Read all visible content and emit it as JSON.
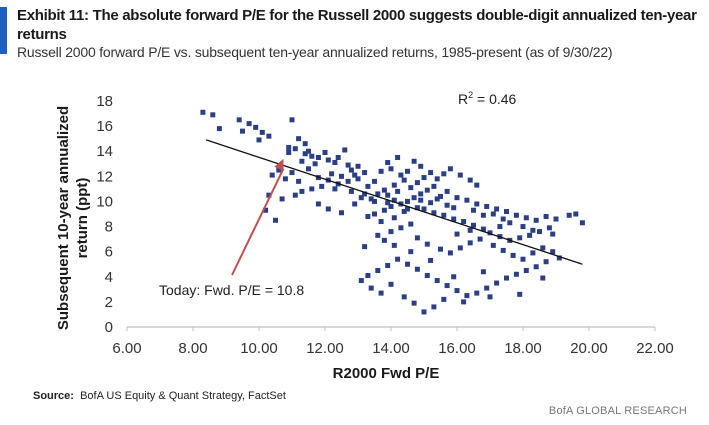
{
  "title": "Exhibit 11: The absolute forward  P/E for the Russell 2000 suggests double-digit annualized ten-year returns",
  "subtitle": "Russell 2000 forward P/E vs. subsequent ten-year annualized returns, 1985-present (as of 9/30/22)",
  "source_label": "Source:",
  "source_text": "BofA US Equity  & Quant Strategy, FactSet",
  "brand": "BofA GLOBAL RESEARCH",
  "colors": {
    "accent": "#1f5fbf",
    "marker": "#2b3f86",
    "arrow": "#c0504d",
    "trend": "#111111"
  },
  "chart_data": {
    "type": "scatter",
    "title": "Exhibit 11: The absolute forward  P/E for the Russell 2000 suggests double-digit annualized ten-year returns",
    "xlabel": "R2000 Fwd P/E",
    "ylabel": "Subsequent 10-year annualized return (ppt)",
    "xlim": [
      6,
      22
    ],
    "ylim": [
      0,
      18
    ],
    "xticks": [
      "6.00",
      "8.00",
      "10.00",
      "12.00",
      "14.00",
      "16.00",
      "18.00",
      "20.00",
      "22.00"
    ],
    "yticks": [
      "0",
      "2",
      "4",
      "6",
      "8",
      "10",
      "12",
      "14",
      "16",
      "18"
    ],
    "r2_label": "R",
    "r2_sup": "2",
    "r2_value": " = 0.46",
    "annotation": {
      "text": "Today: Fwd. P/E = 10.8",
      "x": 10.8,
      "y": 13.4
    },
    "trendline": {
      "x1": 8.4,
      "y1": 14.9,
      "x2": 19.8,
      "y2": 5.0
    },
    "points": [
      [
        8.3,
        17.1
      ],
      [
        8.6,
        16.9
      ],
      [
        8.8,
        15.8
      ],
      [
        9.4,
        16.5
      ],
      [
        9.7,
        16.2
      ],
      [
        9.9,
        15.9
      ],
      [
        9.5,
        15.6
      ],
      [
        10.1,
        15.5
      ],
      [
        10.3,
        15.2
      ],
      [
        10.0,
        14.9
      ],
      [
        11.0,
        16.5
      ],
      [
        11.2,
        15.0
      ],
      [
        11.4,
        14.6
      ],
      [
        11.1,
        14.2
      ],
      [
        11.5,
        14.0
      ],
      [
        10.9,
        13.9
      ],
      [
        11.6,
        13.6
      ],
      [
        11.3,
        13.2
      ],
      [
        11.8,
        13.5
      ],
      [
        12.1,
        13.3
      ],
      [
        12.4,
        13.5
      ],
      [
        12.6,
        14.1
      ],
      [
        12.3,
        13.1
      ],
      [
        11.7,
        13.0
      ],
      [
        11.5,
        12.6
      ],
      [
        11.0,
        12.3
      ],
      [
        10.6,
        12.5
      ],
      [
        10.4,
        12.1
      ],
      [
        10.8,
        11.8
      ],
      [
        11.2,
        11.6
      ],
      [
        11.8,
        11.9
      ],
      [
        12.2,
        12.2
      ],
      [
        12.5,
        12.0
      ],
      [
        12.8,
        12.5
      ],
      [
        12.9,
        12.1
      ],
      [
        13.2,
        12.3
      ],
      [
        13.0,
        11.8
      ],
      [
        12.7,
        11.6
      ],
      [
        12.4,
        11.4
      ],
      [
        12.1,
        11.7
      ],
      [
        11.9,
        11.2
      ],
      [
        11.6,
        11.0
      ],
      [
        11.3,
        10.8
      ],
      [
        11.1,
        10.5
      ],
      [
        10.7,
        10.2
      ],
      [
        10.3,
        10.5
      ],
      [
        10.2,
        9.3
      ],
      [
        10.5,
        8.5
      ],
      [
        11.8,
        9.8
      ],
      [
        12.1,
        9.4
      ],
      [
        12.5,
        9.1
      ],
      [
        12.9,
        9.8
      ],
      [
        13.1,
        10.3
      ],
      [
        13.3,
        11.2
      ],
      [
        13.5,
        11.6
      ],
      [
        13.7,
        12.4
      ],
      [
        13.9,
        13.1
      ],
      [
        14.2,
        13.5
      ],
      [
        14.0,
        12.6
      ],
      [
        14.3,
        12.1
      ],
      [
        14.5,
        12.4
      ],
      [
        14.7,
        13.2
      ],
      [
        14.9,
        12.8
      ],
      [
        14.4,
        11.7
      ],
      [
        14.1,
        11.3
      ],
      [
        13.8,
        10.9
      ],
      [
        13.6,
        10.6
      ],
      [
        13.4,
        10.2
      ],
      [
        13.9,
        10.5
      ],
      [
        14.2,
        10.8
      ],
      [
        14.6,
        11.1
      ],
      [
        14.8,
        11.5
      ],
      [
        15.0,
        11.9
      ],
      [
        15.2,
        12.3
      ],
      [
        15.4,
        11.8
      ],
      [
        15.6,
        12.2
      ],
      [
        15.8,
        12.6
      ],
      [
        16.1,
        12.1
      ],
      [
        16.4,
        11.7
      ],
      [
        16.6,
        11.3
      ],
      [
        15.3,
        11.2
      ],
      [
        15.1,
        10.9
      ],
      [
        14.9,
        10.6
      ],
      [
        14.7,
        10.3
      ],
      [
        14.5,
        10.0
      ],
      [
        14.3,
        9.8
      ],
      [
        14.0,
        9.6
      ],
      [
        13.8,
        9.3
      ],
      [
        13.5,
        9.0
      ],
      [
        13.3,
        8.8
      ],
      [
        13.7,
        8.4
      ],
      [
        14.1,
        8.7
      ],
      [
        14.4,
        9.2
      ],
      [
        14.8,
        9.5
      ],
      [
        15.2,
        9.9
      ],
      [
        15.5,
        10.4
      ],
      [
        15.7,
        10.8
      ],
      [
        16.0,
        10.3
      ],
      [
        16.3,
        10.1
      ],
      [
        16.6,
        9.8
      ],
      [
        16.9,
        9.6
      ],
      [
        17.2,
        9.4
      ],
      [
        17.5,
        9.2
      ],
      [
        17.8,
        8.9
      ],
      [
        18.1,
        8.7
      ],
      [
        18.4,
        8.5
      ],
      [
        18.7,
        8.8
      ],
      [
        19.0,
        8.6
      ],
      [
        19.4,
        8.9
      ],
      [
        19.6,
        9.0
      ],
      [
        19.8,
        8.3
      ],
      [
        18.8,
        7.9
      ],
      [
        18.5,
        7.6
      ],
      [
        18.2,
        7.3
      ],
      [
        17.9,
        7.1
      ],
      [
        17.6,
        6.9
      ],
      [
        17.3,
        7.2
      ],
      [
        17.0,
        7.5
      ],
      [
        16.8,
        7.8
      ],
      [
        16.5,
        8.1
      ],
      [
        16.2,
        8.4
      ],
      [
        15.9,
        8.6
      ],
      [
        15.6,
        8.9
      ],
      [
        15.3,
        9.1
      ],
      [
        15.0,
        9.4
      ],
      [
        14.6,
        8.2
      ],
      [
        14.3,
        7.9
      ],
      [
        14.0,
        7.6
      ],
      [
        13.6,
        7.3
      ],
      [
        13.2,
        6.4
      ],
      [
        14.8,
        7.1
      ],
      [
        15.1,
        6.6
      ],
      [
        15.5,
        6.2
      ],
      [
        15.8,
        5.9
      ],
      [
        16.1,
        6.3
      ],
      [
        16.4,
        6.7
      ],
      [
        16.7,
        7.0
      ],
      [
        17.1,
        6.5
      ],
      [
        17.4,
        6.1
      ],
      [
        17.7,
        5.7
      ],
      [
        18.0,
        5.4
      ],
      [
        18.3,
        5.9
      ],
      [
        18.6,
        6.3
      ],
      [
        18.9,
        6.0
      ],
      [
        19.1,
        5.5
      ],
      [
        18.7,
        5.2
      ],
      [
        18.4,
        4.8
      ],
      [
        18.1,
        4.5
      ],
      [
        17.8,
        4.2
      ],
      [
        17.5,
        3.9
      ],
      [
        17.2,
        3.5
      ],
      [
        16.9,
        3.1
      ],
      [
        16.6,
        2.7
      ],
      [
        16.3,
        2.5
      ],
      [
        16.0,
        2.9
      ],
      [
        15.7,
        3.3
      ],
      [
        15.4,
        3.7
      ],
      [
        15.1,
        4.1
      ],
      [
        14.8,
        4.6
      ],
      [
        14.5,
        5.0
      ],
      [
        14.2,
        5.4
      ],
      [
        13.9,
        4.9
      ],
      [
        13.6,
        4.5
      ],
      [
        13.3,
        4.1
      ],
      [
        13.1,
        3.7
      ],
      [
        13.4,
        3.1
      ],
      [
        13.7,
        2.7
      ],
      [
        14.0,
        3.4
      ],
      [
        14.4,
        2.4
      ],
      [
        14.7,
        1.9
      ],
      [
        15.0,
        1.2
      ],
      [
        15.3,
        1.6
      ],
      [
        15.6,
        2.2
      ],
      [
        16.2,
        2.0
      ],
      [
        17.0,
        2.4
      ],
      [
        17.9,
        2.6
      ],
      [
        18.6,
        3.9
      ],
      [
        16.8,
        4.4
      ],
      [
        15.9,
        4.0
      ],
      [
        15.2,
        5.3
      ],
      [
        14.6,
        6.0
      ],
      [
        14.1,
        6.5
      ],
      [
        13.8,
        6.9
      ],
      [
        16.0,
        7.4
      ],
      [
        16.4,
        7.7
      ],
      [
        17.3,
        8.0
      ],
      [
        17.6,
        8.3
      ],
      [
        18.0,
        8.0
      ],
      [
        18.3,
        7.7
      ],
      [
        18.9,
        7.4
      ],
      [
        13.0,
        12.8
      ],
      [
        12.7,
        12.9
      ],
      [
        12.0,
        13.9
      ],
      [
        11.4,
        13.8
      ],
      [
        10.9,
        14.3
      ],
      [
        12.3,
        11.0
      ],
      [
        12.8,
        10.8
      ],
      [
        13.2,
        10.6
      ],
      [
        13.5,
        10.0
      ],
      [
        14.1,
        10.1
      ],
      [
        14.9,
        10.1
      ],
      [
        15.4,
        10.2
      ],
      [
        15.9,
        9.5
      ],
      [
        16.5,
        9.3
      ],
      [
        17.1,
        9.0
      ],
      [
        17.4,
        8.6
      ],
      [
        16.8,
        8.9
      ],
      [
        15.7,
        9.7
      ],
      [
        14.5,
        9.4
      ],
      [
        13.9,
        9.9
      ]
    ]
  }
}
